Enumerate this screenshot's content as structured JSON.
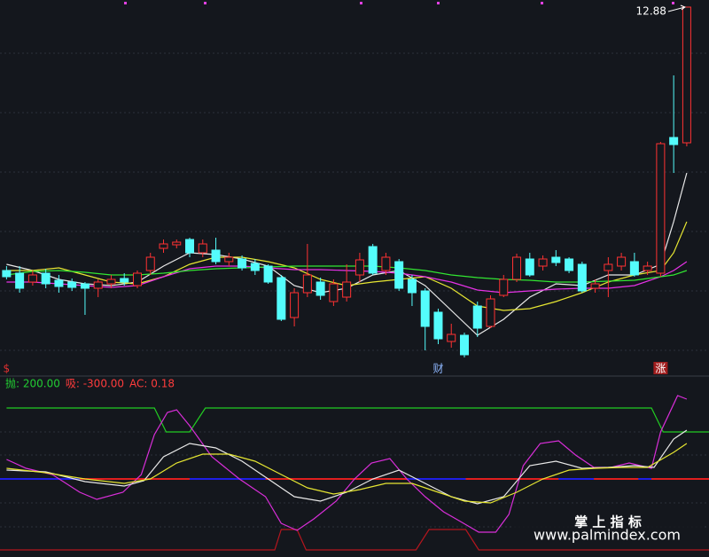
{
  "chart_data": [
    {
      "type": "candlestick",
      "xlim": [
        -0.5,
        53.7
      ],
      "ylim": [
        8.86,
        12.96
      ],
      "candles": {
        "up_color": "#ff3232",
        "down_color": "#54fcfc",
        "open": [
          9.91,
          9.88,
          9.78,
          9.88,
          9.8,
          9.78,
          9.76,
          9.71,
          9.76,
          9.82,
          9.74,
          9.91,
          10.16,
          10.2,
          10.26,
          10.11,
          10.14,
          10.01,
          10.04,
          9.99,
          9.96,
          9.83,
          9.38,
          9.66,
          9.78,
          9.56,
          9.61,
          9.86,
          10.18,
          9.91,
          10.01,
          9.81,
          9.68,
          9.44,
          9.11,
          9.18,
          9.51,
          9.28,
          9.63,
          9.81,
          10.04,
          9.96,
          10.06,
          10.04,
          9.98,
          9.71,
          9.91,
          9.96,
          10.01,
          9.91,
          9.88,
          11.41,
          11.35
        ],
        "close": [
          9.84,
          9.71,
          9.86,
          9.76,
          9.73,
          9.72,
          9.71,
          9.78,
          9.81,
          9.78,
          9.88,
          10.06,
          10.21,
          10.23,
          10.11,
          10.21,
          10.01,
          10.06,
          9.94,
          9.91,
          9.78,
          9.36,
          9.66,
          9.86,
          9.63,
          9.76,
          9.78,
          10.03,
          9.88,
          10.06,
          9.71,
          9.66,
          9.28,
          9.14,
          9.19,
          8.96,
          9.26,
          9.59,
          9.81,
          10.06,
          9.86,
          10.04,
          10.0,
          9.91,
          9.68,
          9.76,
          9.98,
          10.06,
          9.86,
          9.96,
          11.34,
          11.33,
          12.88
        ],
        "high": [
          9.96,
          9.96,
          9.91,
          9.93,
          9.86,
          9.82,
          9.78,
          9.81,
          9.86,
          9.88,
          9.91,
          10.11,
          10.26,
          10.26,
          10.28,
          10.26,
          10.28,
          10.11,
          10.08,
          10.04,
          9.98,
          9.86,
          9.71,
          10.21,
          9.83,
          9.81,
          9.98,
          10.11,
          10.21,
          10.11,
          10.04,
          9.86,
          9.71,
          9.48,
          9.31,
          9.21,
          9.56,
          9.63,
          9.86,
          10.1,
          10.11,
          10.08,
          10.14,
          10.06,
          10.01,
          9.81,
          10.06,
          10.11,
          10.11,
          10.01,
          11.36,
          12.11,
          12.88
        ],
        "low": [
          9.81,
          9.66,
          9.74,
          9.71,
          9.66,
          9.68,
          9.41,
          9.61,
          9.71,
          9.74,
          9.71,
          9.86,
          10.11,
          10.16,
          10.06,
          10.06,
          9.98,
          9.96,
          9.91,
          9.86,
          9.76,
          9.34,
          9.28,
          9.61,
          9.58,
          9.51,
          9.56,
          9.78,
          9.86,
          9.86,
          9.68,
          9.51,
          9.01,
          9.08,
          9.04,
          8.93,
          9.16,
          9.26,
          9.61,
          9.78,
          9.84,
          9.91,
          9.96,
          9.88,
          9.66,
          9.66,
          9.61,
          9.91,
          9.84,
          9.86,
          9.84,
          11.01,
          11.31
        ]
      },
      "line_x": [
        0,
        2,
        4,
        6,
        8,
        10,
        12,
        14,
        16,
        18,
        20,
        22,
        24,
        26,
        28,
        30,
        32,
        34,
        36,
        38,
        40,
        42,
        44,
        46,
        48,
        50,
        51,
        52
      ],
      "series": [
        {
          "color": "#e8e8e8",
          "values": [
            9.98,
            9.91,
            9.81,
            9.76,
            9.74,
            9.78,
            9.96,
            10.11,
            10.09,
            10.04,
            9.96,
            9.74,
            9.66,
            9.71,
            9.86,
            9.91,
            9.74,
            9.46,
            9.18,
            9.36,
            9.61,
            9.76,
            9.74,
            9.86,
            9.86,
            9.98,
            10.46,
            11.01
          ]
        },
        {
          "color": "#e6e632",
          "values": [
            9.91,
            9.91,
            9.94,
            9.86,
            9.78,
            9.76,
            9.84,
            9.98,
            10.06,
            10.06,
            10.01,
            9.94,
            9.81,
            9.74,
            9.78,
            9.81,
            9.84,
            9.71,
            9.51,
            9.46,
            9.48,
            9.56,
            9.66,
            9.78,
            9.86,
            9.91,
            10.11,
            10.46
          ]
        },
        {
          "color": "#e632e6",
          "values": [
            9.78,
            9.78,
            9.76,
            9.74,
            9.72,
            9.74,
            9.84,
            9.93,
            9.96,
            9.96,
            9.94,
            9.92,
            9.92,
            9.91,
            9.9,
            9.88,
            9.84,
            9.78,
            9.69,
            9.66,
            9.68,
            9.7,
            9.71,
            9.71,
            9.74,
            9.84,
            9.91,
            10.01
          ]
        },
        {
          "color": "#32e632",
          "values": [
            9.86,
            9.9,
            9.91,
            9.89,
            9.86,
            9.86,
            9.88,
            9.91,
            9.93,
            9.94,
            9.95,
            9.96,
            9.96,
            9.96,
            9.96,
            9.94,
            9.91,
            9.86,
            9.83,
            9.81,
            9.8,
            9.78,
            9.78,
            9.79,
            9.8,
            9.84,
            9.86,
            9.91
          ]
        }
      ],
      "annotations": [
        {
          "text": "$",
          "x": 0,
          "color": "#e03030"
        },
        {
          "text": "财",
          "x": 33,
          "color": "#8fb8ff"
        },
        {
          "text": "涨",
          "x": 50,
          "color": "#ffffff",
          "box": "#a01e1e"
        }
      ]
    },
    {
      "type": "line",
      "xlim": [
        -0.5,
        53.7
      ],
      "ylim": [
        -220,
        275
      ],
      "legend": [
        "抛: 200.00",
        "吸: -300.00",
        "AC: 0.18"
      ],
      "legend_colors": [
        "#22cc33",
        "#ff3c3c",
        "#ff3c3c"
      ],
      "zero_line": {
        "value": 0,
        "color": "#e01e1e",
        "segment_color": "#1e1ee6",
        "segments": [
          [
            -0.5,
            5.6
          ],
          [
            14,
            19.8
          ],
          [
            30.6,
            35.1
          ],
          [
            42.2,
            44.9
          ],
          [
            48.3,
            49.3
          ]
        ]
      },
      "series": [
        {
          "color": "#22cc22",
          "x": [
            0,
            11.3,
            12.2,
            14,
            15.2,
            49.3,
            50.2,
            53.7
          ],
          "values": [
            200,
            200,
            132.5,
            132.5,
            200,
            200,
            132.5,
            132.5
          ]
        },
        {
          "color": "#b4161e",
          "x": [
            -0.5,
            20.5,
            21,
            22.2,
            22.9,
            31.3,
            32.3,
            35.1,
            36.1,
            53.7
          ],
          "values": [
            -200,
            -200,
            -142.5,
            -142.5,
            -200,
            -200,
            -142.5,
            -142.5,
            -200,
            -200
          ]
        },
        {
          "color": "#d92ed9",
          "x": [
            0,
            1.5,
            3.5,
            5.6,
            6.9,
            8.9,
            10.3,
            11.3,
            12.3,
            13,
            14,
            15.7,
            17.8,
            19.8,
            21,
            22.2,
            23.5,
            25.2,
            26.6,
            27.9,
            29.3,
            30.6,
            32,
            33.4,
            34.7,
            36.1,
            37.4,
            38.4,
            39.5,
            40.8,
            42.2,
            43.5,
            44.9,
            46.2,
            47.6,
            49.3,
            50,
            51.3,
            52
          ],
          "values": [
            55,
            30,
            12.5,
            -37.5,
            -57.5,
            -37.5,
            12.5,
            125,
            187.5,
            195,
            150,
            62.5,
            0,
            -50,
            -125,
            -145,
            -112.5,
            -62.5,
            0,
            45,
            57.5,
            0,
            -50,
            -92.5,
            -120,
            -150,
            -150,
            -100,
            37.5,
            100,
            107.5,
            67.5,
            32.5,
            32.5,
            45,
            30,
            132.5,
            235,
            225
          ]
        },
        {
          "color": "#e8e8e8",
          "x": [
            0,
            3,
            6,
            9,
            10.5,
            12,
            14,
            16,
            18,
            20,
            22,
            24,
            26,
            28,
            30,
            32,
            34,
            36,
            38,
            40,
            42,
            44,
            46,
            48,
            49.5,
            51,
            52
          ],
          "values": [
            25,
            20,
            -7.5,
            -20,
            -5,
            62.5,
            100,
            87.5,
            50,
            0,
            -50,
            -62.5,
            -37.5,
            0,
            25,
            -12.5,
            -50,
            -70,
            -50,
            37.5,
            50,
            30,
            32.5,
            37.5,
            32.5,
            112.5,
            137.5
          ]
        },
        {
          "color": "#e6e632",
          "x": [
            0,
            3,
            6,
            9,
            11,
            13,
            15,
            17,
            19,
            21,
            23,
            25,
            27,
            29,
            31,
            33,
            35,
            37,
            39,
            41,
            43,
            45,
            47,
            49,
            51,
            52
          ],
          "values": [
            30,
            17.5,
            0,
            -12.5,
            0,
            45,
            70,
            70,
            50,
            12.5,
            -25,
            -42.5,
            -30,
            -12.5,
            -12.5,
            -37.5,
            -62.5,
            -67.5,
            -37.5,
            0,
            25,
            30,
            32.5,
            32.5,
            75,
            100
          ]
        }
      ]
    }
  ],
  "watermark": {
    "title": "掌 上 指 标",
    "url": "www.palmindex.com"
  }
}
